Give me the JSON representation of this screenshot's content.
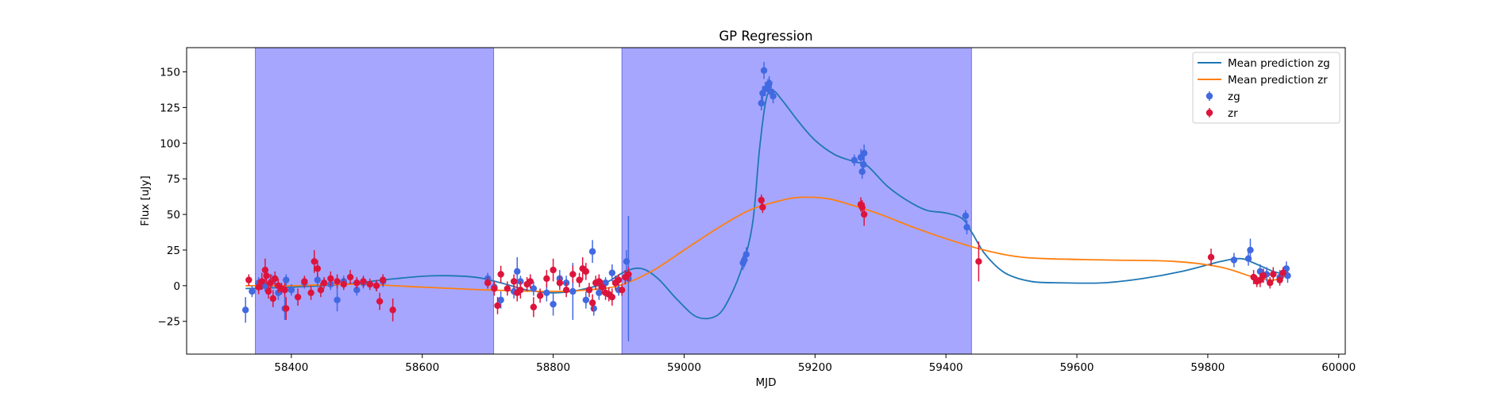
{
  "chart_data": {
    "type": "scatter",
    "title": "GP Regression",
    "xlabel": "MJD",
    "ylabel": "Flux [uJy]",
    "xlim": [
      58240,
      60010
    ],
    "ylim": [
      -48,
      167
    ],
    "xticks": [
      58400,
      58600,
      58800,
      59000,
      59200,
      59400,
      59600,
      59800,
      60000
    ],
    "yticks": [
      -25,
      0,
      25,
      50,
      75,
      100,
      125,
      150
    ],
    "grid": false,
    "legend_position": "top-right",
    "shaded_regions": [
      {
        "x0": 58345,
        "x1": 58709,
        "color": "#a6a6ff"
      },
      {
        "x0": 58905,
        "x1": 59439,
        "color": "#a6a6ff"
      }
    ],
    "lines": [
      {
        "name": "Mean prediction zg",
        "color": "#1f77b4",
        "points": [
          [
            58330,
            -2
          ],
          [
            58400,
            -1
          ],
          [
            58480,
            1
          ],
          [
            58560,
            5
          ],
          [
            58620,
            7
          ],
          [
            58680,
            6
          ],
          [
            58720,
            2
          ],
          [
            58760,
            -3
          ],
          [
            58800,
            -5
          ],
          [
            58840,
            -3
          ],
          [
            58880,
            2
          ],
          [
            58910,
            10
          ],
          [
            58935,
            12
          ],
          [
            58960,
            5
          ],
          [
            58990,
            -10
          ],
          [
            59020,
            -22
          ],
          [
            59050,
            -21
          ],
          [
            59070,
            -8
          ],
          [
            59090,
            15
          ],
          [
            59105,
            45
          ],
          [
            59115,
            95
          ],
          [
            59125,
            130
          ],
          [
            59135,
            137
          ],
          [
            59150,
            130
          ],
          [
            59175,
            115
          ],
          [
            59200,
            102
          ],
          [
            59230,
            92
          ],
          [
            59260,
            87
          ],
          [
            59280,
            84
          ],
          [
            59310,
            70
          ],
          [
            59340,
            60
          ],
          [
            59370,
            53
          ],
          [
            59400,
            51
          ],
          [
            59425,
            47
          ],
          [
            59440,
            37
          ],
          [
            59460,
            22
          ],
          [
            59490,
            9
          ],
          [
            59530,
            3
          ],
          [
            59580,
            2
          ],
          [
            59640,
            2
          ],
          [
            59700,
            5
          ],
          [
            59760,
            10
          ],
          [
            59820,
            17
          ],
          [
            59850,
            19
          ],
          [
            59870,
            16
          ],
          [
            59900,
            10
          ],
          [
            59920,
            8
          ]
        ]
      },
      {
        "name": "Mean prediction zr",
        "color": "#ff7f0e",
        "points": [
          [
            58330,
            0
          ],
          [
            58400,
            0
          ],
          [
            58500,
            1
          ],
          [
            58600,
            -1
          ],
          [
            58700,
            -3
          ],
          [
            58800,
            -4
          ],
          [
            58850,
            -3
          ],
          [
            58900,
            0
          ],
          [
            58950,
            10
          ],
          [
            59000,
            25
          ],
          [
            59050,
            40
          ],
          [
            59100,
            53
          ],
          [
            59150,
            60
          ],
          [
            59180,
            62
          ],
          [
            59220,
            61
          ],
          [
            59260,
            56
          ],
          [
            59300,
            50
          ],
          [
            59350,
            41
          ],
          [
            59400,
            33
          ],
          [
            59450,
            26
          ],
          [
            59500,
            21
          ],
          [
            59550,
            19
          ],
          [
            59650,
            18
          ],
          [
            59750,
            17
          ],
          [
            59820,
            13
          ],
          [
            59870,
            6
          ],
          [
            59900,
            4
          ],
          [
            59920,
            7
          ]
        ]
      }
    ],
    "series": [
      {
        "name": "zg",
        "color": "#4169e1",
        "points": [
          [
            58330,
            -17,
            9
          ],
          [
            58340,
            -4,
            4
          ],
          [
            58350,
            2,
            4
          ],
          [
            58360,
            0,
            4
          ],
          [
            58370,
            3,
            5
          ],
          [
            58380,
            -5,
            5
          ],
          [
            58390,
            -16,
            8
          ],
          [
            58392,
            4,
            4
          ],
          [
            58400,
            -3,
            4
          ],
          [
            58420,
            2,
            4
          ],
          [
            58440,
            4,
            5
          ],
          [
            58460,
            1,
            4
          ],
          [
            58470,
            -10,
            8
          ],
          [
            58480,
            3,
            4
          ],
          [
            58500,
            -3,
            4
          ],
          [
            58510,
            2,
            4
          ],
          [
            58530,
            0,
            4
          ],
          [
            58540,
            3,
            4
          ],
          [
            58700,
            5,
            4
          ],
          [
            58710,
            -1,
            4
          ],
          [
            58720,
            -10,
            6
          ],
          [
            58740,
            -4,
            5
          ],
          [
            58745,
            10,
            10
          ],
          [
            58750,
            3,
            4
          ],
          [
            58770,
            -2,
            5
          ],
          [
            58790,
            -5,
            6
          ],
          [
            58800,
            -13,
            8
          ],
          [
            58810,
            5,
            6
          ],
          [
            58820,
            2,
            5
          ],
          [
            58830,
            -4,
            20
          ],
          [
            58850,
            -10,
            6
          ],
          [
            58860,
            24,
            8
          ],
          [
            58862,
            -16,
            5
          ],
          [
            58870,
            -5,
            5
          ],
          [
            58880,
            2,
            4
          ],
          [
            58890,
            9,
            6
          ],
          [
            58900,
            -3,
            4
          ],
          [
            58912,
            17,
            8
          ],
          [
            58915,
            5,
            44
          ],
          [
            59090,
            16,
            5
          ],
          [
            59092,
            18,
            5
          ],
          [
            59095,
            22,
            5
          ],
          [
            59118,
            128,
            5
          ],
          [
            59120,
            135,
            5
          ],
          [
            59122,
            151,
            6
          ],
          [
            59124,
            138,
            5
          ],
          [
            59128,
            140,
            5
          ],
          [
            59130,
            142,
            5
          ],
          [
            59133,
            136,
            5
          ],
          [
            59136,
            133,
            5
          ],
          [
            59260,
            88,
            4
          ],
          [
            59270,
            90,
            6
          ],
          [
            59272,
            80,
            5
          ],
          [
            59274,
            85,
            5
          ],
          [
            59275,
            93,
            6
          ],
          [
            59430,
            49,
            4
          ],
          [
            59432,
            41,
            5
          ],
          [
            59840,
            18,
            5
          ],
          [
            59862,
            19,
            5
          ],
          [
            59865,
            25,
            8
          ],
          [
            59880,
            10,
            5
          ],
          [
            59890,
            8,
            5
          ],
          [
            59910,
            6,
            5
          ],
          [
            59920,
            12,
            5
          ],
          [
            59922,
            7,
            5
          ]
        ]
      },
      {
        "name": "zr",
        "color": "#dc143c",
        "points": [
          [
            58335,
            4,
            4
          ],
          [
            58350,
            -1,
            5
          ],
          [
            58355,
            3,
            6
          ],
          [
            58360,
            11,
            8
          ],
          [
            58362,
            7,
            6
          ],
          [
            58365,
            -4,
            5
          ],
          [
            58368,
            2,
            6
          ],
          [
            58372,
            -9,
            6
          ],
          [
            58375,
            5,
            5
          ],
          [
            58380,
            0,
            5
          ],
          [
            58385,
            -2,
            4
          ],
          [
            58390,
            -3,
            5
          ],
          [
            58392,
            -16,
            8
          ],
          [
            58410,
            -8,
            6
          ],
          [
            58420,
            3,
            4
          ],
          [
            58430,
            -5,
            5
          ],
          [
            58435,
            17,
            8
          ],
          [
            58440,
            12,
            6
          ],
          [
            58445,
            -3,
            5
          ],
          [
            58450,
            2,
            4
          ],
          [
            58460,
            5,
            5
          ],
          [
            58470,
            3,
            5
          ],
          [
            58480,
            1,
            4
          ],
          [
            58490,
            6,
            5
          ],
          [
            58500,
            2,
            4
          ],
          [
            58510,
            3,
            4
          ],
          [
            58520,
            1,
            4
          ],
          [
            58530,
            0,
            4
          ],
          [
            58535,
            -11,
            6
          ],
          [
            58540,
            4,
            4
          ],
          [
            58555,
            -17,
            8
          ],
          [
            58700,
            2,
            4
          ],
          [
            58710,
            -2,
            5
          ],
          [
            58715,
            -14,
            6
          ],
          [
            58720,
            8,
            6
          ],
          [
            58730,
            -2,
            5
          ],
          [
            58740,
            3,
            5
          ],
          [
            58745,
            -5,
            6
          ],
          [
            58750,
            -3,
            6
          ],
          [
            58760,
            1,
            5
          ],
          [
            58765,
            3,
            5
          ],
          [
            58770,
            -15,
            7
          ],
          [
            58780,
            -7,
            5
          ],
          [
            58790,
            5,
            6
          ],
          [
            58800,
            11,
            8
          ],
          [
            58810,
            2,
            5
          ],
          [
            58820,
            -3,
            5
          ],
          [
            58830,
            8,
            6
          ],
          [
            58840,
            4,
            5
          ],
          [
            58845,
            12,
            8
          ],
          [
            58850,
            10,
            6
          ],
          [
            58855,
            -3,
            5
          ],
          [
            58860,
            -12,
            6
          ],
          [
            58865,
            2,
            5
          ],
          [
            58870,
            3,
            5
          ],
          [
            58875,
            -1,
            5
          ],
          [
            58880,
            -5,
            5
          ],
          [
            58885,
            -6,
            5
          ],
          [
            58890,
            -8,
            6
          ],
          [
            58895,
            2,
            5
          ],
          [
            58900,
            4,
            4
          ],
          [
            58905,
            -3,
            4
          ],
          [
            58910,
            6,
            5
          ],
          [
            58915,
            8,
            5
          ],
          [
            59118,
            60,
            4
          ],
          [
            59120,
            55,
            4
          ],
          [
            59270,
            57,
            5
          ],
          [
            59272,
            55,
            5
          ],
          [
            59275,
            50,
            8
          ],
          [
            59450,
            17,
            14
          ],
          [
            59805,
            20,
            6
          ],
          [
            59870,
            6,
            5
          ],
          [
            59875,
            3,
            4
          ],
          [
            59880,
            4,
            5
          ],
          [
            59885,
            7,
            5
          ],
          [
            59895,
            2,
            4
          ],
          [
            59900,
            8,
            5
          ],
          [
            59910,
            4,
            4
          ],
          [
            59915,
            9,
            4
          ]
        ]
      }
    ]
  }
}
